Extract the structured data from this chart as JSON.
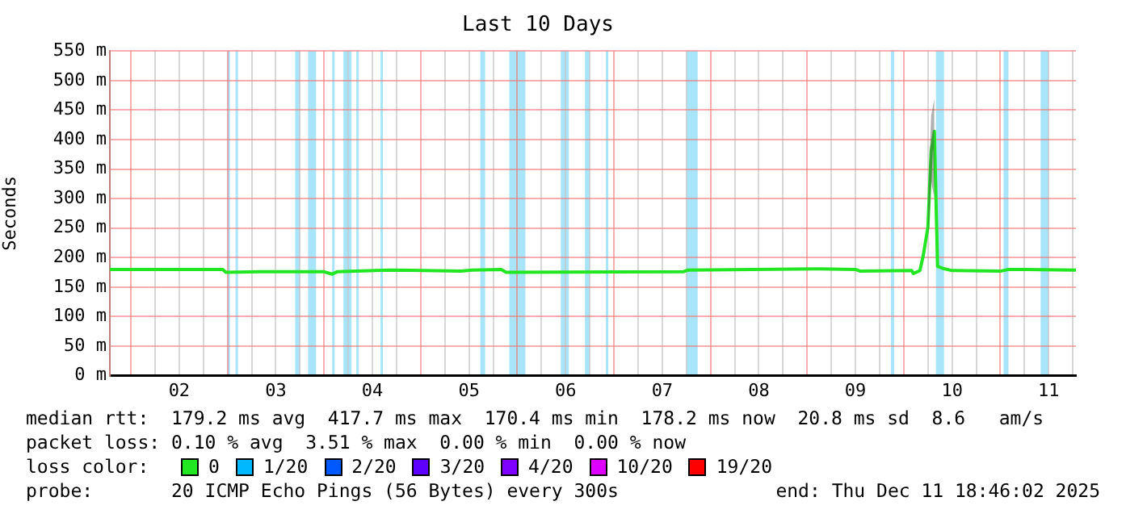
{
  "chart_data": {
    "type": "line",
    "title": "Last 10 Days",
    "ylabel": "Seconds",
    "x": [
      "2025-12-01T18:46",
      "2025-12-02T22:48",
      "2025-12-02T23:36",
      "2025-12-03T08:00",
      "2025-12-04T00:00",
      "2025-12-04T02:00",
      "2025-12-04T03:12",
      "2025-12-04T16:00",
      "2025-12-05T10:00",
      "2025-12-05T12:48",
      "2025-12-05T20:00",
      "2025-12-05T21:12",
      "2025-12-07T17:12",
      "2025-12-07T18:24",
      "2025-12-09T02:00",
      "2025-12-09T12:00",
      "2025-12-09T13:12",
      "2025-12-10T02:00",
      "2025-12-10T02:24",
      "2025-12-10T04:00",
      "2025-12-10T04:48",
      "2025-12-10T06:00",
      "2025-12-10T06:48",
      "2025-12-10T07:36",
      "2025-12-10T08:24",
      "2025-12-10T09:36",
      "2025-12-10T12:00",
      "2025-12-11T00:00",
      "2025-12-11T02:00",
      "2025-12-11T18:46"
    ],
    "series": [
      {
        "name": "0",
        "color": "#22e622",
        "values": [
          180,
          180,
          175,
          176,
          176,
          172,
          176,
          179,
          177,
          179,
          180,
          175,
          176,
          179,
          181,
          180,
          177,
          178,
          173,
          178,
          202,
          252,
          380,
          414,
          185,
          182,
          178,
          177,
          180,
          179
        ],
        "lower": [
          null,
          null,
          null,
          null,
          null,
          null,
          null,
          null,
          null,
          null,
          null,
          null,
          null,
          null,
          null,
          null,
          null,
          null,
          null,
          null,
          null,
          230,
          330,
          300,
          null,
          null,
          null,
          null,
          null,
          null
        ],
        "upper": [
          null,
          null,
          null,
          null,
          null,
          null,
          null,
          null,
          null,
          null,
          null,
          null,
          null,
          null,
          null,
          null,
          null,
          null,
          null,
          null,
          null,
          280,
          440,
          470,
          null,
          null,
          null,
          null,
          null,
          null
        ]
      },
      {
        "name": "1/20",
        "color": "#00b8ff",
        "values": [
          null,
          null,
          null,
          null,
          null,
          null,
          null,
          null,
          null,
          null,
          null,
          null,
          null,
          null,
          null,
          null,
          null,
          null,
          null,
          null,
          null,
          null,
          null,
          null,
          null,
          null,
          null,
          null,
          null,
          null
        ]
      },
      {
        "name": "2/20",
        "color": "#0059ff",
        "values": [
          null,
          null,
          null,
          null,
          null,
          null,
          null,
          null,
          null,
          null,
          null,
          null,
          null,
          null,
          null,
          null,
          null,
          null,
          null,
          null,
          null,
          null,
          null,
          null,
          null,
          null,
          null,
          null,
          null,
          null
        ]
      },
      {
        "name": "3/20",
        "color": "#5e00ff",
        "values": [
          null,
          null,
          null,
          null,
          null,
          null,
          null,
          null,
          null,
          null,
          null,
          null,
          null,
          null,
          null,
          null,
          null,
          null,
          null,
          null,
          null,
          null,
          null,
          null,
          null,
          null,
          null,
          null,
          null,
          null
        ]
      },
      {
        "name": "4/20",
        "color": "#7e00ff",
        "values": [
          null,
          null,
          null,
          null,
          null,
          null,
          null,
          null,
          null,
          null,
          null,
          null,
          null,
          null,
          null,
          null,
          null,
          null,
          null,
          null,
          null,
          null,
          null,
          null,
          null,
          null,
          null,
          null,
          null,
          null
        ]
      },
      {
        "name": "10/20",
        "color": "#dd00ff",
        "values": [
          null,
          null,
          null,
          null,
          null,
          null,
          null,
          null,
          null,
          null,
          null,
          null,
          null,
          null,
          null,
          null,
          null,
          null,
          null,
          null,
          null,
          null,
          null,
          null,
          null,
          null,
          null,
          null,
          null,
          null
        ]
      },
      {
        "name": "19/20",
        "color": "#ff0000",
        "values": [
          null,
          null,
          null,
          null,
          null,
          null,
          null,
          null,
          null,
          null,
          null,
          null,
          null,
          null,
          null,
          null,
          null,
          null,
          null,
          null,
          null,
          null,
          null,
          null,
          null,
          null,
          null,
          null,
          null,
          null
        ]
      }
    ],
    "legend": "bottom",
    "legend_title": "loss color:",
    "grid": true,
    "xlim": [
      "2025-12-01T18:46",
      "2025-12-11T18:46"
    ],
    "xticks": [
      {
        "value": "2025-12-02T00:00",
        "label": null
      },
      {
        "value": "2025-12-02T06:00",
        "label": null
      },
      {
        "value": "2025-12-02T12:00",
        "label": "02"
      },
      {
        "value": "2025-12-02T18:00",
        "label": null
      },
      {
        "value": "2025-12-03T00:00",
        "label": null
      },
      {
        "value": "2025-12-03T06:00",
        "label": null
      },
      {
        "value": "2025-12-03T12:00",
        "label": "03"
      },
      {
        "value": "2025-12-03T18:00",
        "label": null
      },
      {
        "value": "2025-12-04T00:00",
        "label": null
      },
      {
        "value": "2025-12-04T06:00",
        "label": null
      },
      {
        "value": "2025-12-04T12:00",
        "label": "04"
      },
      {
        "value": "2025-12-04T18:00",
        "label": null
      },
      {
        "value": "2025-12-05T00:00",
        "label": null
      },
      {
        "value": "2025-12-05T06:00",
        "label": null
      },
      {
        "value": "2025-12-05T12:00",
        "label": "05"
      },
      {
        "value": "2025-12-05T18:00",
        "label": null
      },
      {
        "value": "2025-12-06T00:00",
        "label": null
      },
      {
        "value": "2025-12-06T06:00",
        "label": null
      },
      {
        "value": "2025-12-06T12:00",
        "label": "06"
      },
      {
        "value": "2025-12-06T18:00",
        "label": null
      },
      {
        "value": "2025-12-07T00:00",
        "label": null
      },
      {
        "value": "2025-12-07T06:00",
        "label": null
      },
      {
        "value": "2025-12-07T12:00",
        "label": "07"
      },
      {
        "value": "2025-12-07T18:00",
        "label": null
      },
      {
        "value": "2025-12-08T00:00",
        "label": null
      },
      {
        "value": "2025-12-08T06:00",
        "label": null
      },
      {
        "value": "2025-12-08T12:00",
        "label": "08"
      },
      {
        "value": "2025-12-08T18:00",
        "label": null
      },
      {
        "value": "2025-12-09T00:00",
        "label": null
      },
      {
        "value": "2025-12-09T06:00",
        "label": null
      },
      {
        "value": "2025-12-09T12:00",
        "label": "09"
      },
      {
        "value": "2025-12-09T18:00",
        "label": null
      },
      {
        "value": "2025-12-10T00:00",
        "label": null
      },
      {
        "value": "2025-12-10T06:00",
        "label": null
      },
      {
        "value": "2025-12-10T12:00",
        "label": "10"
      },
      {
        "value": "2025-12-10T18:00",
        "label": null
      },
      {
        "value": "2025-12-11T00:00",
        "label": null
      },
      {
        "value": "2025-12-11T06:00",
        "label": null
      },
      {
        "value": "2025-12-11T12:00",
        "label": "11"
      },
      {
        "value": "2025-12-11T18:00",
        "label": null
      }
    ],
    "ylim": [
      0,
      550
    ],
    "yticks": [
      {
        "value": 0,
        "label": "0 m"
      },
      {
        "value": 50,
        "label": "50 m"
      },
      {
        "value": 100,
        "label": "100 m"
      },
      {
        "value": 150,
        "label": "150 m"
      },
      {
        "value": 200,
        "label": "200 m"
      },
      {
        "value": 250,
        "label": "250 m"
      },
      {
        "value": 300,
        "label": "300 m"
      },
      {
        "value": 350,
        "label": "350 m"
      },
      {
        "value": 400,
        "label": "400 m"
      },
      {
        "value": 450,
        "label": "450 m"
      },
      {
        "value": 500,
        "label": "500 m"
      },
      {
        "value": 550,
        "label": "550 m"
      }
    ],
    "bands": [
      {
        "axis": "x",
        "from": "2025-12-03T00:00",
        "to": "2025-12-03T00:24",
        "color": "#a8e4fa"
      },
      {
        "axis": "x",
        "from": "2025-12-03T02:00",
        "to": "2025-12-03T02:36",
        "color": "#a8e4fa"
      },
      {
        "axis": "x",
        "from": "2025-12-03T16:48",
        "to": "2025-12-03T18:00",
        "color": "#a8e4fa"
      },
      {
        "axis": "x",
        "from": "2025-12-03T20:00",
        "to": "2025-12-03T22:00",
        "color": "#a8e4fa"
      },
      {
        "axis": "x",
        "from": "2025-12-04T02:00",
        "to": "2025-12-04T02:36",
        "color": "#a8e4fa"
      },
      {
        "axis": "x",
        "from": "2025-12-04T04:48",
        "to": "2025-12-04T06:48",
        "color": "#a8e4fa"
      },
      {
        "axis": "x",
        "from": "2025-12-04T08:00",
        "to": "2025-12-04T08:36",
        "color": "#a8e4fa"
      },
      {
        "axis": "x",
        "from": "2025-12-04T14:00",
        "to": "2025-12-04T14:36",
        "color": "#a8e4fa"
      },
      {
        "axis": "x",
        "from": "2025-12-05T14:48",
        "to": "2025-12-05T16:00",
        "color": "#a8e4fa"
      },
      {
        "axis": "x",
        "from": "2025-12-05T22:00",
        "to": "2025-12-06T02:00",
        "color": "#a8e4fa"
      },
      {
        "axis": "x",
        "from": "2025-12-06T10:48",
        "to": "2025-12-06T12:48",
        "color": "#a8e4fa"
      },
      {
        "axis": "x",
        "from": "2025-12-06T16:48",
        "to": "2025-12-06T18:00",
        "color": "#a8e4fa"
      },
      {
        "axis": "x",
        "from": "2025-12-06T22:00",
        "to": "2025-12-06T22:36",
        "color": "#a8e4fa"
      },
      {
        "axis": "x",
        "from": "2025-12-07T18:00",
        "to": "2025-12-07T20:48",
        "color": "#a8e4fa"
      },
      {
        "axis": "x",
        "from": "2025-12-09T20:48",
        "to": "2025-12-09T21:36",
        "color": "#a8e4fa"
      },
      {
        "axis": "x",
        "from": "2025-12-10T08:00",
        "to": "2025-12-10T10:00",
        "color": "#a8e4fa"
      },
      {
        "axis": "x",
        "from": "2025-12-11T00:48",
        "to": "2025-12-11T02:00",
        "color": "#a8e4fa"
      },
      {
        "axis": "x",
        "from": "2025-12-11T10:00",
        "to": "2025-12-11T12:00",
        "color": "#a8e4fa"
      }
    ],
    "annotations": [
      "median rtt:  179.2 ms avg  417.7 ms max  170.4 ms min  178.2 ms now  20.8 ms sd  8.6   am/s",
      "packet loss: 0.10 % avg  3.51 % max  0.00 % min  0.00 % now",
      "probe:       20 ICMP Echo Pings (56 Bytes) every 300s",
      "end: Thu Dec 11 18:46:02 2025"
    ]
  }
}
